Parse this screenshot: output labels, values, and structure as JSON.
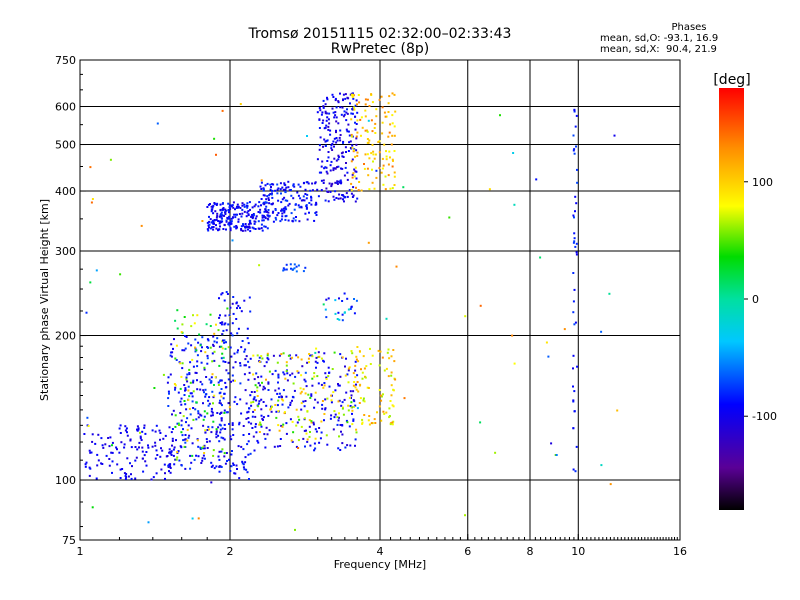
{
  "chart_data": {
    "type": "scatter",
    "title": "Tromsø 20151115 02:32:00–02:33:43",
    "subtitle": "RwPretec (8p)",
    "xlabel": "Frequency [MHz]",
    "ylabel": "Stationary phase Virtual Height [km]",
    "xscale": "log",
    "yscale": "log",
    "xlim": [
      1,
      16
    ],
    "ylim": [
      75,
      750
    ],
    "x_ticks": [
      1,
      2,
      4,
      6,
      8,
      10,
      16
    ],
    "y_ticks": [
      75,
      100,
      200,
      300,
      400,
      500,
      600,
      750
    ],
    "x_grid": [
      2,
      4,
      6,
      8,
      10
    ],
    "y_grid": [
      100,
      200,
      300,
      400,
      500,
      600
    ],
    "grid": true,
    "colorbar": {
      "label": "[deg]",
      "range": [
        -180,
        180
      ],
      "ticks": [
        100,
        0,
        -100
      ],
      "colormap": "rainbow"
    },
    "phase_stats": {
      "heading": "Phases",
      "line1": "mean, sd,O: -93.1, 16.9",
      "line2": "mean, sd,X:  90.4, 21.9"
    },
    "clusters": [
      {
        "f": [
          1.02,
          1.55
        ],
        "h": [
          100,
          130
        ],
        "phase": [
          -110,
          -85
        ],
        "n": 140
      },
      {
        "f": [
          1.5,
          1.95
        ],
        "h": [
          105,
          200
        ],
        "phase": [
          -110,
          -70
        ],
        "n": 230
      },
      {
        "f": [
          1.55,
          2.0
        ],
        "h": [
          110,
          230
        ],
        "phase": [
          10,
          110
        ],
        "n": 90
      },
      {
        "f": [
          1.9,
          2.2
        ],
        "h": [
          100,
          250
        ],
        "phase": [
          -110,
          -75
        ],
        "n": 160
      },
      {
        "f": [
          2.2,
          3.6
        ],
        "h": [
          115,
          185
        ],
        "phase": [
          -115,
          -80
        ],
        "n": 230
      },
      {
        "f": [
          2.2,
          3.6
        ],
        "h": [
          120,
          185
        ],
        "phase": [
          40,
          120
        ],
        "n": 130
      },
      {
        "f": [
          3.5,
          4.3
        ],
        "h": [
          130,
          190
        ],
        "phase": [
          60,
          130
        ],
        "n": 90
      },
      {
        "f": [
          1.8,
          2.4
        ],
        "h": [
          330,
          380
        ],
        "phase": [
          -110,
          -75
        ],
        "n": 230
      },
      {
        "f": [
          2.3,
          3.0
        ],
        "h": [
          345,
          420
        ],
        "phase": [
          -110,
          -70
        ],
        "n": 160
      },
      {
        "f": [
          3.0,
          3.6
        ],
        "h": [
          380,
          640
        ],
        "phase": [
          -120,
          -80
        ],
        "n": 220
      },
      {
        "f": [
          3.5,
          4.3
        ],
        "h": [
          400,
          640
        ],
        "phase": [
          70,
          140
        ],
        "n": 130
      },
      {
        "f": [
          2.55,
          2.85
        ],
        "h": [
          272,
          282
        ],
        "phase": [
          -80,
          -60
        ],
        "n": 16
      },
      {
        "f": [
          3.1,
          3.6
        ],
        "h": [
          215,
          245
        ],
        "phase": [
          -100,
          -10
        ],
        "n": 24
      },
      {
        "f": [
          9.75,
          9.95
        ],
        "h": [
          100,
          600
        ],
        "phase": [
          -100,
          -70
        ],
        "n": 45
      },
      {
        "f": [
          1.0,
          12.0
        ],
        "h": [
          76,
          650
        ],
        "phase": [
          -110,
          150
        ],
        "n": 80
      }
    ]
  }
}
